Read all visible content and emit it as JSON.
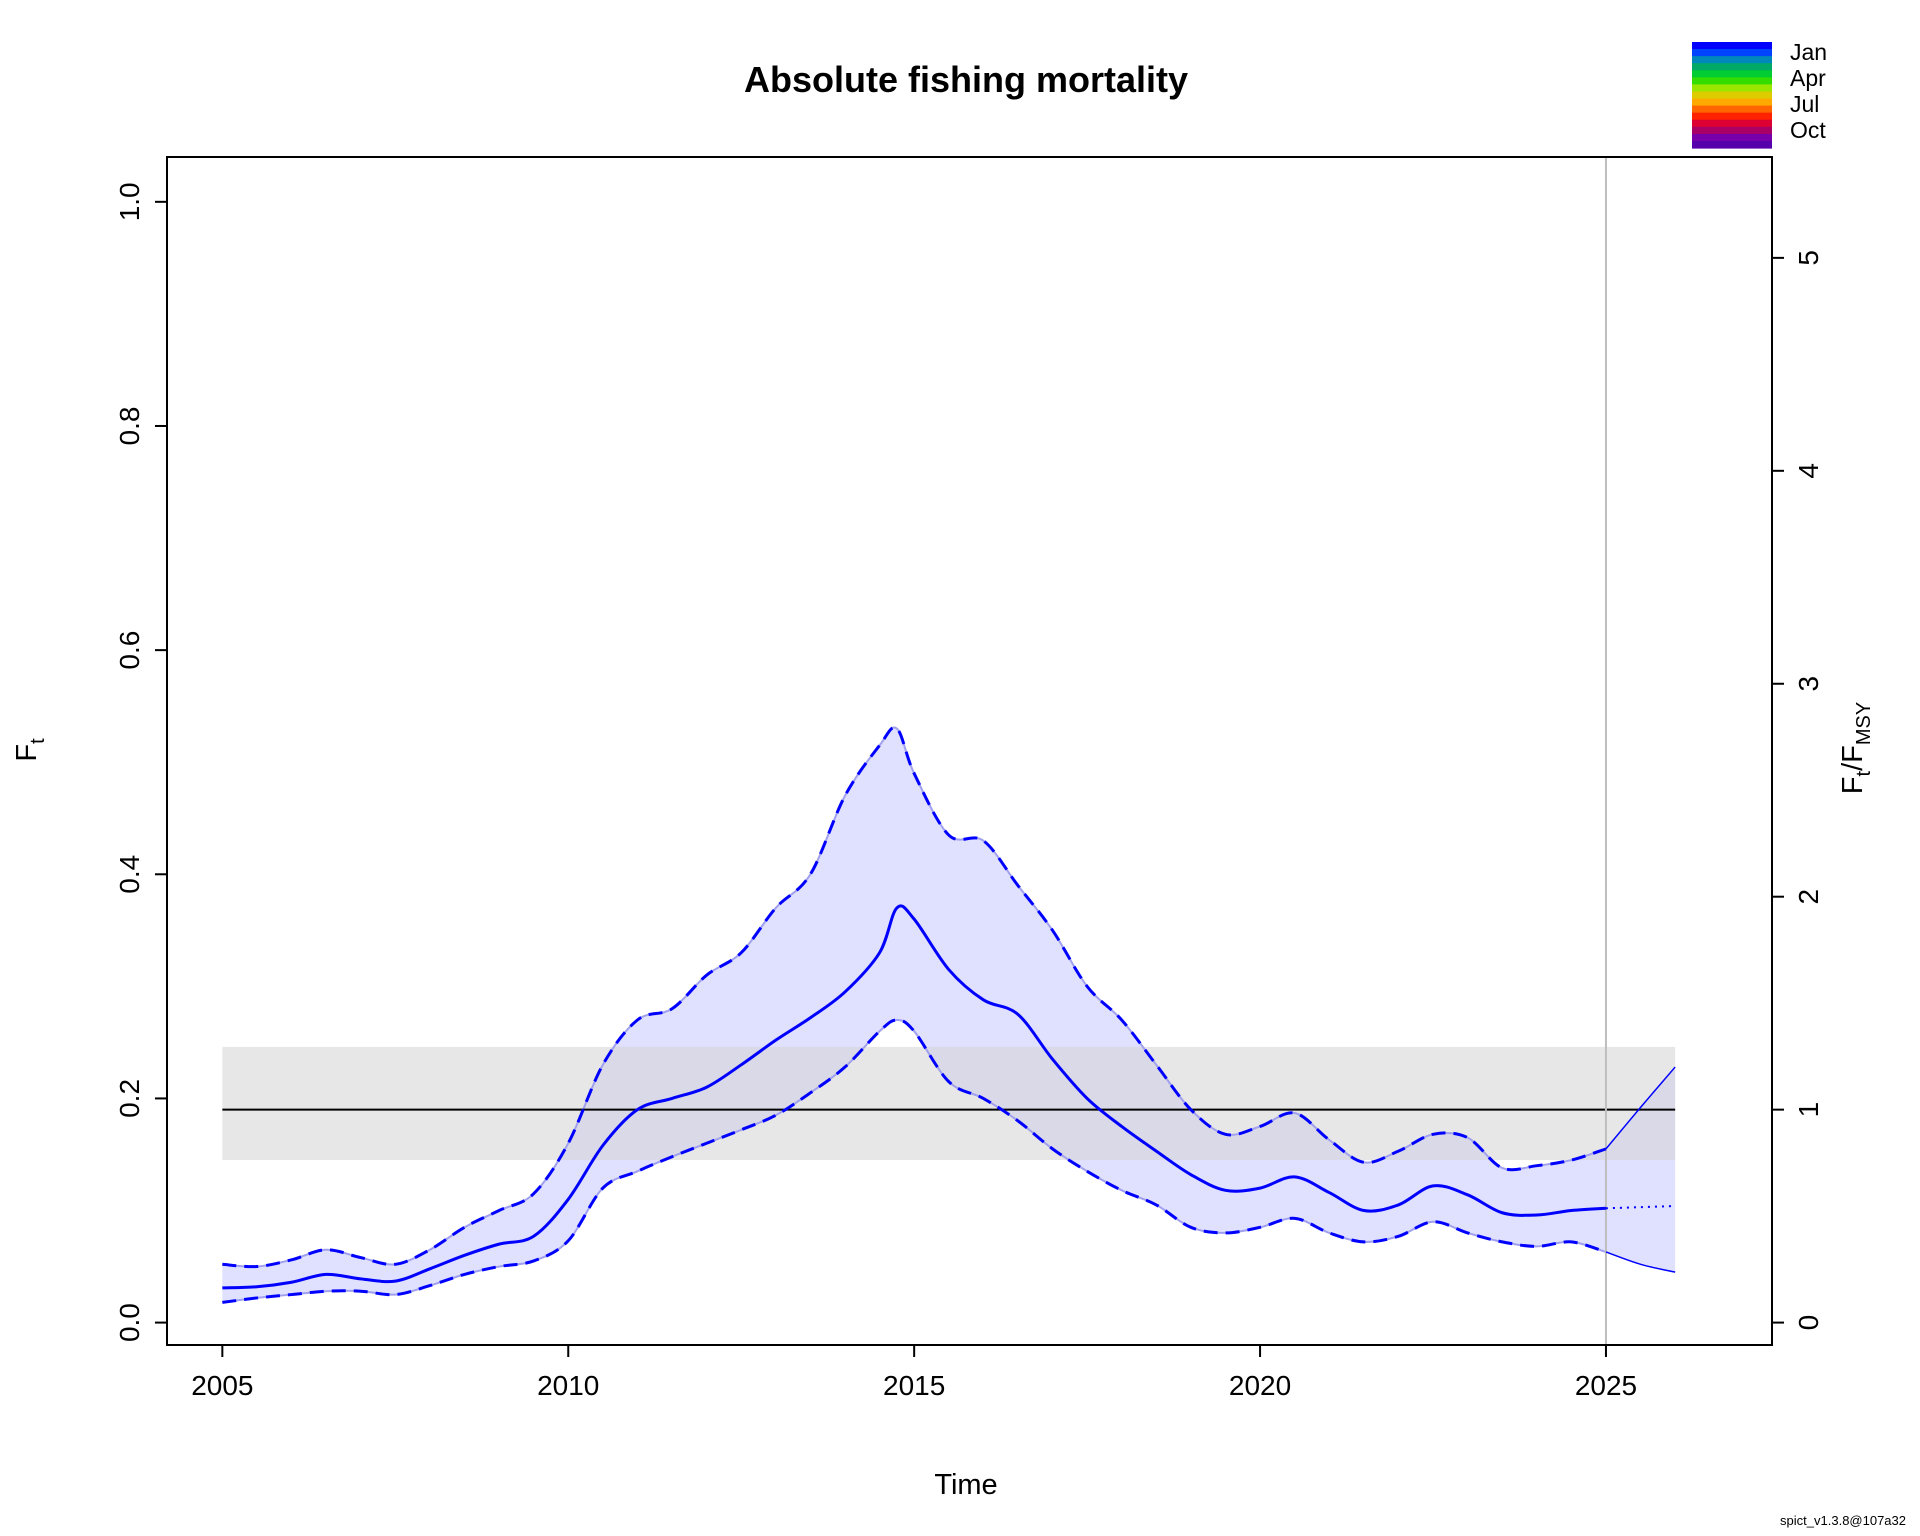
{
  "chart_data": {
    "type": "line",
    "title": "Absolute fishing mortality",
    "xlabel": "Time",
    "ylabel": "F",
    "ylabel_sub": "t",
    "y2label": "F",
    "y2label_sub": "t",
    "y2label_den": "F",
    "y2label_den_sub": "MSY",
    "xlim": [
      2004.2,
      2027.4
    ],
    "ylim": [
      -0.02,
      1.04
    ],
    "x_ticks": [
      2005,
      2010,
      2015,
      2020,
      2025
    ],
    "x_tick_labels": [
      "2005",
      "2010",
      "2015",
      "2020",
      "2025"
    ],
    "y_ticks": [
      0.0,
      0.2,
      0.4,
      0.6,
      0.8,
      1.0
    ],
    "y_tick_labels": [
      "0.0",
      "0.2",
      "0.4",
      "0.6",
      "0.8",
      "1.0"
    ],
    "y2_ticks": [
      0,
      1,
      2,
      3,
      4,
      5
    ],
    "y2_tick_labels": [
      "0",
      "1",
      "2",
      "3",
      "4",
      "5"
    ],
    "fmsy": 0.19,
    "fmsy_ci": [
      0.145,
      0.246
    ],
    "fmsy_range": [
      2005,
      2026
    ],
    "last_obs_year": 2025,
    "colors": {
      "estimate": "#0000ff",
      "ci_fill": "#e0e0ff",
      "ci_edge": "#a0a0ee",
      "fmsy_band": "#d3d3d3",
      "fmsy_line": "#000000",
      "vline": "#bebebe"
    },
    "season_legend": {
      "labels": [
        "Jan",
        "Apr",
        "Jul",
        "Oct"
      ],
      "colors": [
        "#0000ff",
        "#0044ff",
        "#0088bb",
        "#00aa66",
        "#00cc33",
        "#33dd00",
        "#99e600",
        "#ddcc00",
        "#ffaa00",
        "#ff6600",
        "#ff2200",
        "#dd0033",
        "#aa0066",
        "#7700aa",
        "#5500aa"
      ]
    },
    "series": [
      {
        "name": "F",
        "x": [
          2005,
          2005.5,
          2006,
          2006.5,
          2007,
          2007.5,
          2008,
          2008.5,
          2009,
          2009.5,
          2010,
          2010.5,
          2011,
          2011.5,
          2012,
          2012.5,
          2013,
          2013.5,
          2014,
          2014.5,
          2014.75,
          2015,
          2015.5,
          2016,
          2016.5,
          2017,
          2017.5,
          2018,
          2018.5,
          2019,
          2019.5,
          2020,
          2020.5,
          2021,
          2021.5,
          2022,
          2022.5,
          2023,
          2023.5,
          2024,
          2024.5,
          2025
        ],
        "values": [
          0.031,
          0.032,
          0.036,
          0.043,
          0.039,
          0.037,
          0.048,
          0.06,
          0.07,
          0.077,
          0.11,
          0.158,
          0.19,
          0.2,
          0.21,
          0.23,
          0.252,
          0.272,
          0.295,
          0.33,
          0.37,
          0.36,
          0.315,
          0.288,
          0.275,
          0.235,
          0.2,
          0.175,
          0.153,
          0.132,
          0.118,
          0.12,
          0.13,
          0.116,
          0.1,
          0.105,
          0.122,
          0.114,
          0.098,
          0.096,
          0.1,
          0.102
        ]
      },
      {
        "name": "upper 95% CI",
        "x": [
          2005,
          2005.5,
          2006,
          2006.5,
          2007,
          2007.5,
          2008,
          2008.5,
          2009,
          2009.5,
          2010,
          2010.5,
          2011,
          2011.5,
          2012,
          2012.5,
          2013,
          2013.5,
          2014,
          2014.5,
          2014.75,
          2015,
          2015.5,
          2016,
          2016.5,
          2017,
          2017.5,
          2018,
          2018.5,
          2019,
          2019.5,
          2020,
          2020.5,
          2021,
          2021.5,
          2022,
          2022.5,
          2023,
          2023.5,
          2024,
          2024.5,
          2025
        ],
        "values": [
          0.052,
          0.05,
          0.056,
          0.065,
          0.058,
          0.052,
          0.065,
          0.085,
          0.1,
          0.115,
          0.16,
          0.23,
          0.27,
          0.28,
          0.31,
          0.33,
          0.37,
          0.4,
          0.47,
          0.515,
          0.53,
          0.49,
          0.435,
          0.43,
          0.39,
          0.35,
          0.3,
          0.27,
          0.23,
          0.19,
          0.168,
          0.175,
          0.187,
          0.163,
          0.143,
          0.153,
          0.168,
          0.165,
          0.138,
          0.14,
          0.145,
          0.155
        ]
      },
      {
        "name": "lower 95% CI",
        "x": [
          2005,
          2005.5,
          2006,
          2006.5,
          2007,
          2007.5,
          2008,
          2008.5,
          2009,
          2009.5,
          2010,
          2010.5,
          2011,
          2011.5,
          2012,
          2012.5,
          2013,
          2013.5,
          2014,
          2014.5,
          2014.75,
          2015,
          2015.5,
          2016,
          2016.5,
          2017,
          2017.5,
          2018,
          2018.5,
          2019,
          2019.5,
          2020,
          2020.5,
          2021,
          2021.5,
          2022,
          2022.5,
          2023,
          2023.5,
          2024,
          2024.5,
          2025
        ],
        "values": [
          0.018,
          0.022,
          0.025,
          0.028,
          0.028,
          0.025,
          0.033,
          0.043,
          0.05,
          0.055,
          0.073,
          0.12,
          0.135,
          0.148,
          0.16,
          0.172,
          0.185,
          0.205,
          0.228,
          0.26,
          0.27,
          0.26,
          0.215,
          0.2,
          0.18,
          0.155,
          0.135,
          0.118,
          0.105,
          0.085,
          0.08,
          0.085,
          0.093,
          0.08,
          0.072,
          0.077,
          0.09,
          0.08,
          0.072,
          0.068,
          0.072,
          0.063
        ]
      },
      {
        "name": "F forecast",
        "x": [
          2025,
          2025.5,
          2026
        ],
        "values": [
          0.102,
          0.103,
          0.104
        ]
      },
      {
        "name": "upper CI forecast",
        "x": [
          2025,
          2025.5,
          2026
        ],
        "values": [
          0.155,
          0.192,
          0.228
        ]
      },
      {
        "name": "lower CI forecast",
        "x": [
          2025,
          2025.5,
          2026
        ],
        "values": [
          0.063,
          0.052,
          0.045
        ]
      }
    ]
  },
  "footer": "spict_v1.3.8@107a32"
}
